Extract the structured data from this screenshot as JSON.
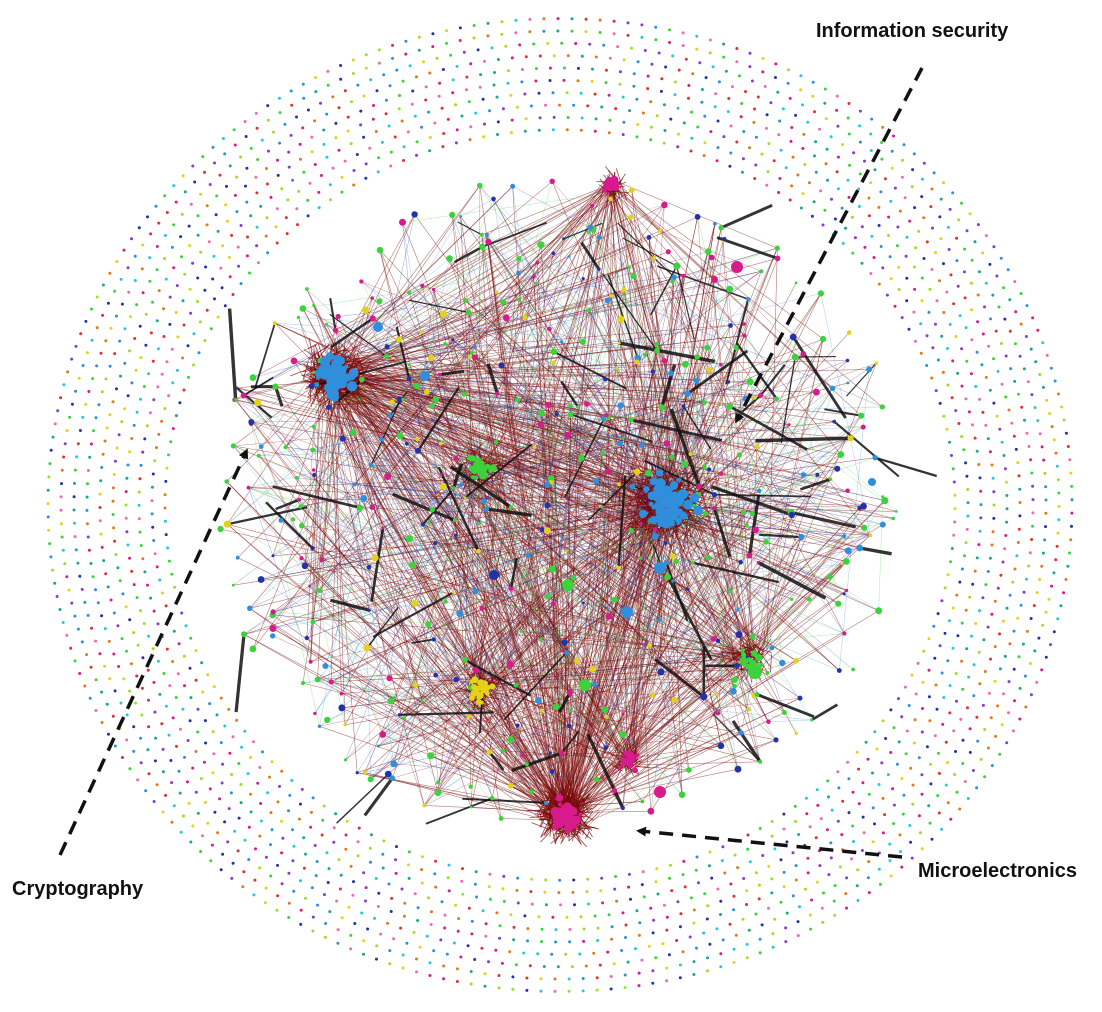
{
  "labels": {
    "information_security": "Information security",
    "cryptography": "Cryptography",
    "microelectronics": "Microelectronics"
  },
  "colors": {
    "edge_dark_red": "#7a0a0a",
    "edge_black": "#111111",
    "node_blue": "#2f8fdc",
    "node_green": "#3bd33b",
    "node_magenta": "#d81b8c",
    "node_yellow": "#e3d21a",
    "node_orange": "#e07a1c",
    "node_navy": "#2233aa",
    "node_cyan": "#28c8d8",
    "node_red": "#e03030",
    "node_purple": "#8a3ad0",
    "node_pink": "#f06ab0",
    "node_lime": "#9ae02a",
    "node_teal": "#1aa88a",
    "annotation_arrow": "#111111"
  },
  "clusters": [
    {
      "name": "cryptography",
      "color": "node_blue"
    },
    {
      "name": "information security",
      "color": "node_blue"
    },
    {
      "name": "microelectronics",
      "color": "node_magenta"
    }
  ]
}
